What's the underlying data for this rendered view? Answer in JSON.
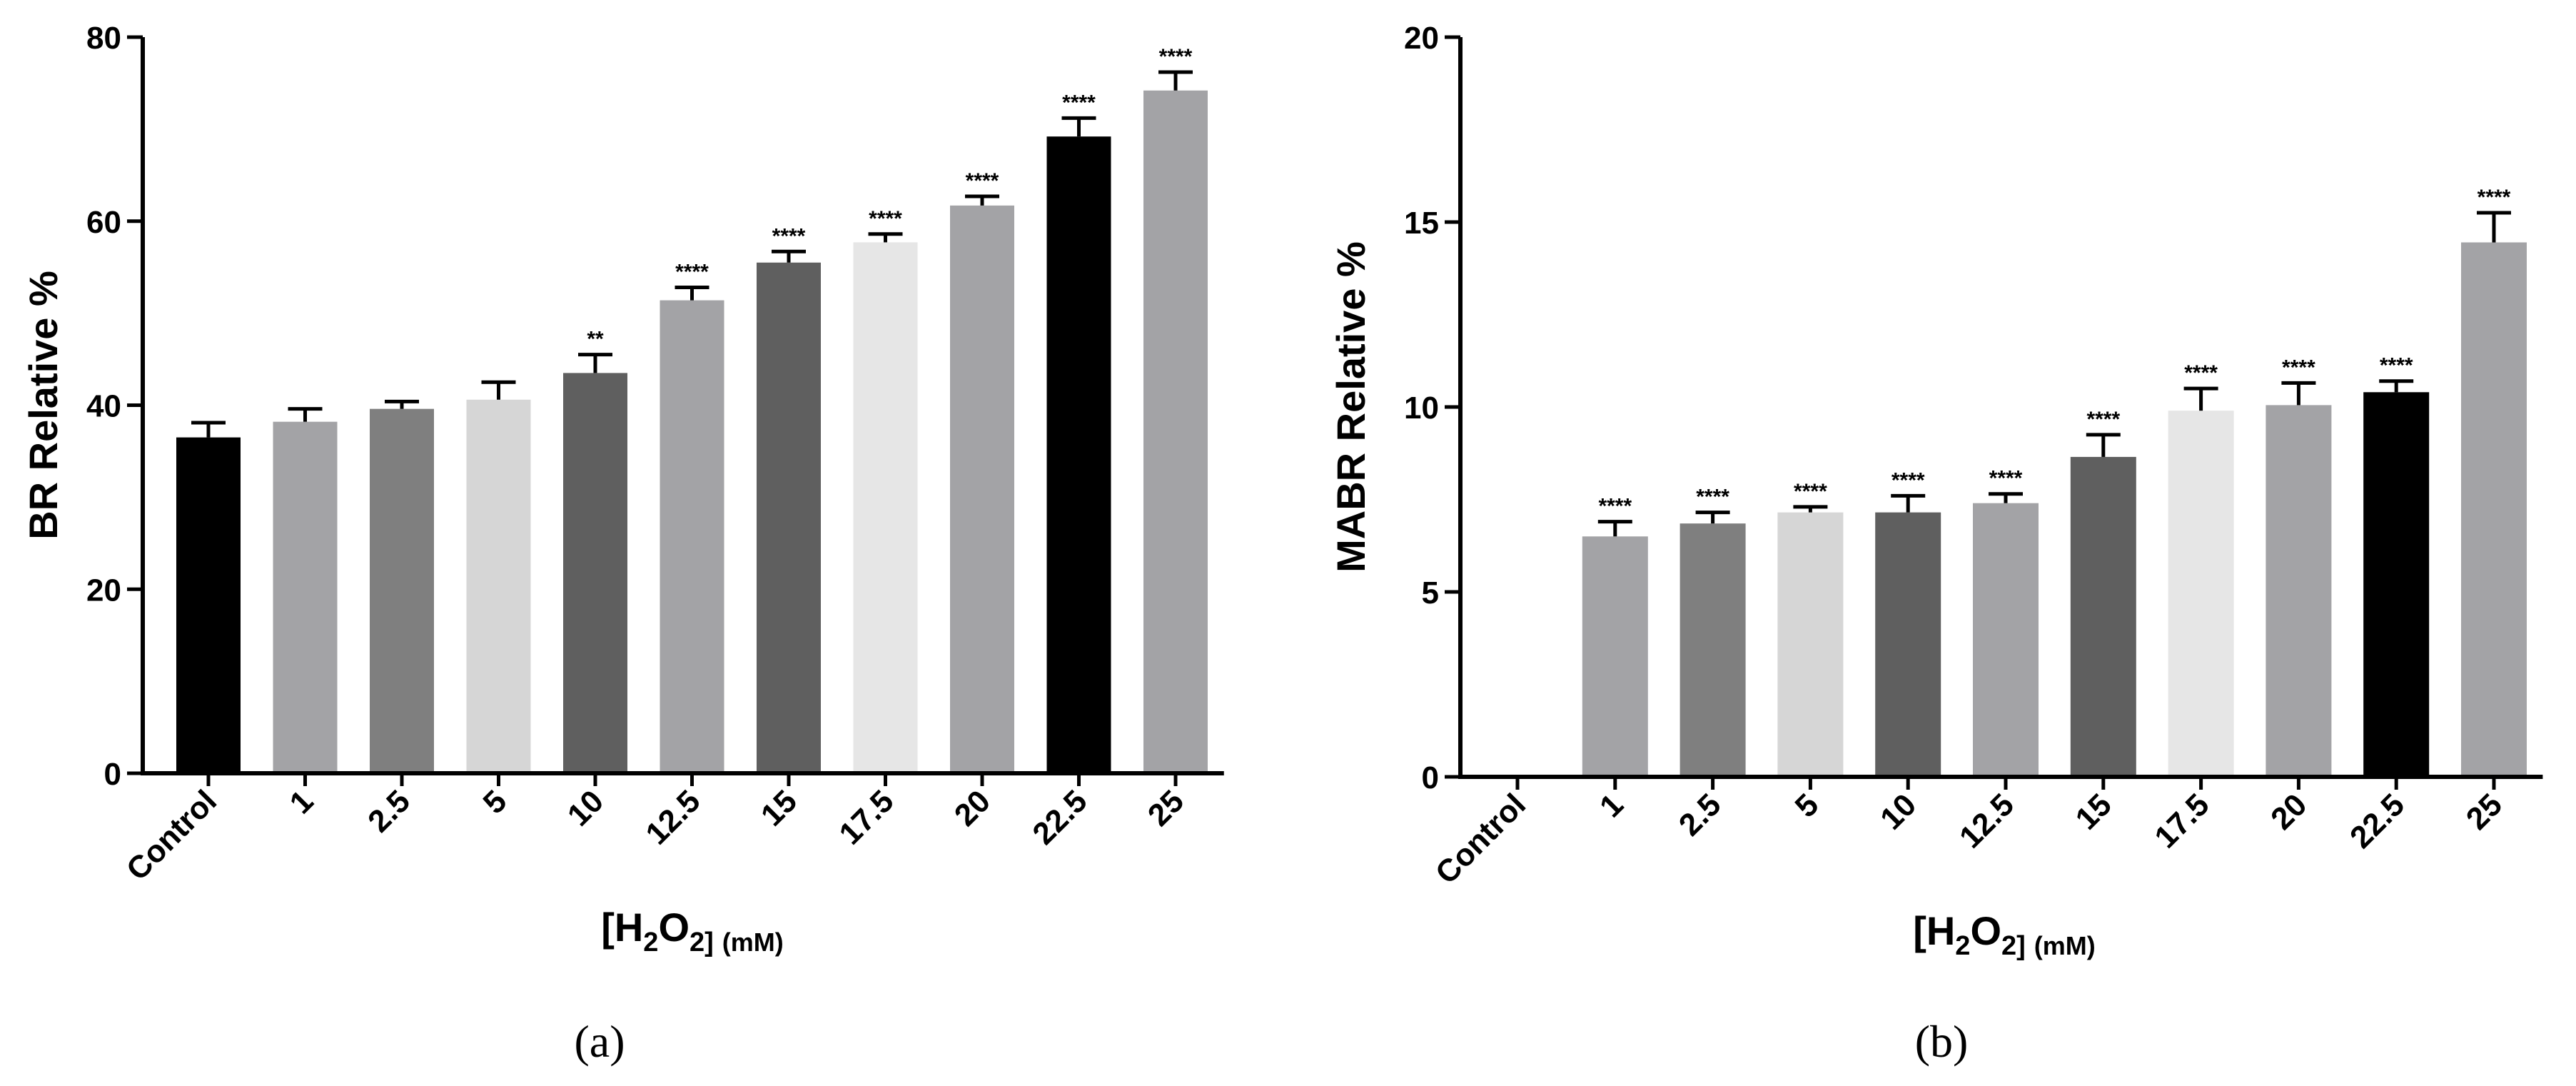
{
  "chart_data": [
    {
      "type": "bar",
      "panel_label": "(a)",
      "ylabel": "BR Relative %",
      "xlabel_base": "[H",
      "xlabel_sub1": "2",
      "xlabel_mid": "O",
      "xlabel_sub2": "2]",
      "xlabel_unit": "(mM)",
      "ylim": [
        0,
        80
      ],
      "yticks": [
        "0",
        "20",
        "40",
        "60",
        "80"
      ],
      "ytick_values": [
        0,
        20,
        40,
        60,
        80
      ],
      "categories": [
        "Control",
        "1",
        "2.5",
        "5",
        "10",
        "12.5",
        "15",
        "17.5",
        "20",
        "22.5",
        "25"
      ],
      "values": [
        36.5,
        38.2,
        39.6,
        40.6,
        43.5,
        51.4,
        55.5,
        57.7,
        61.7,
        69.2,
        74.2
      ],
      "errors": [
        1.6,
        1.4,
        0.8,
        1.9,
        2.0,
        1.4,
        1.2,
        0.9,
        1.0,
        2.0,
        2.0
      ],
      "significance": [
        "",
        "",
        "",
        "",
        "**",
        "****",
        "****",
        "****",
        "****",
        "****",
        "****"
      ],
      "colors": [
        "#000000",
        "#a3a3a6",
        "#7f7f7f",
        "#d6d6d6",
        "#5f5f5f",
        "#a3a3a6",
        "#5f5f5f",
        "#e6e6e6",
        "#a3a3a6",
        "#000000",
        "#a3a3a6"
      ]
    },
    {
      "type": "bar",
      "panel_label": "(b)",
      "ylabel": "MABR Relative %",
      "xlabel_base": "[H",
      "xlabel_sub1": "2",
      "xlabel_mid": "O",
      "xlabel_sub2": "2]",
      "xlabel_unit": "(mM)",
      "ylim": [
        0,
        20
      ],
      "yticks": [
        "0",
        "5",
        "10",
        "15",
        "20"
      ],
      "ytick_values": [
        0,
        5,
        10,
        15,
        20
      ],
      "categories": [
        "Control",
        "1",
        "2.5",
        "5",
        "10",
        "12.5",
        "15",
        "17.5",
        "20",
        "22.5",
        "25"
      ],
      "values": [
        0,
        6.5,
        6.85,
        7.15,
        7.15,
        7.4,
        8.65,
        9.9,
        10.05,
        10.4,
        14.45
      ],
      "errors": [
        0,
        0.4,
        0.3,
        0.15,
        0.45,
        0.25,
        0.6,
        0.6,
        0.6,
        0.3,
        0.8
      ],
      "significance": [
        "",
        "****",
        "****",
        "****",
        "****",
        "****",
        "****",
        "****",
        "****",
        "****",
        "****"
      ],
      "colors": [
        "#000000",
        "#a3a3a6",
        "#7f7f7f",
        "#d6d6d6",
        "#5f5f5f",
        "#a3a3a6",
        "#5f5f5f",
        "#e6e6e6",
        "#a3a3a6",
        "#000000",
        "#a3a3a6"
      ]
    }
  ]
}
